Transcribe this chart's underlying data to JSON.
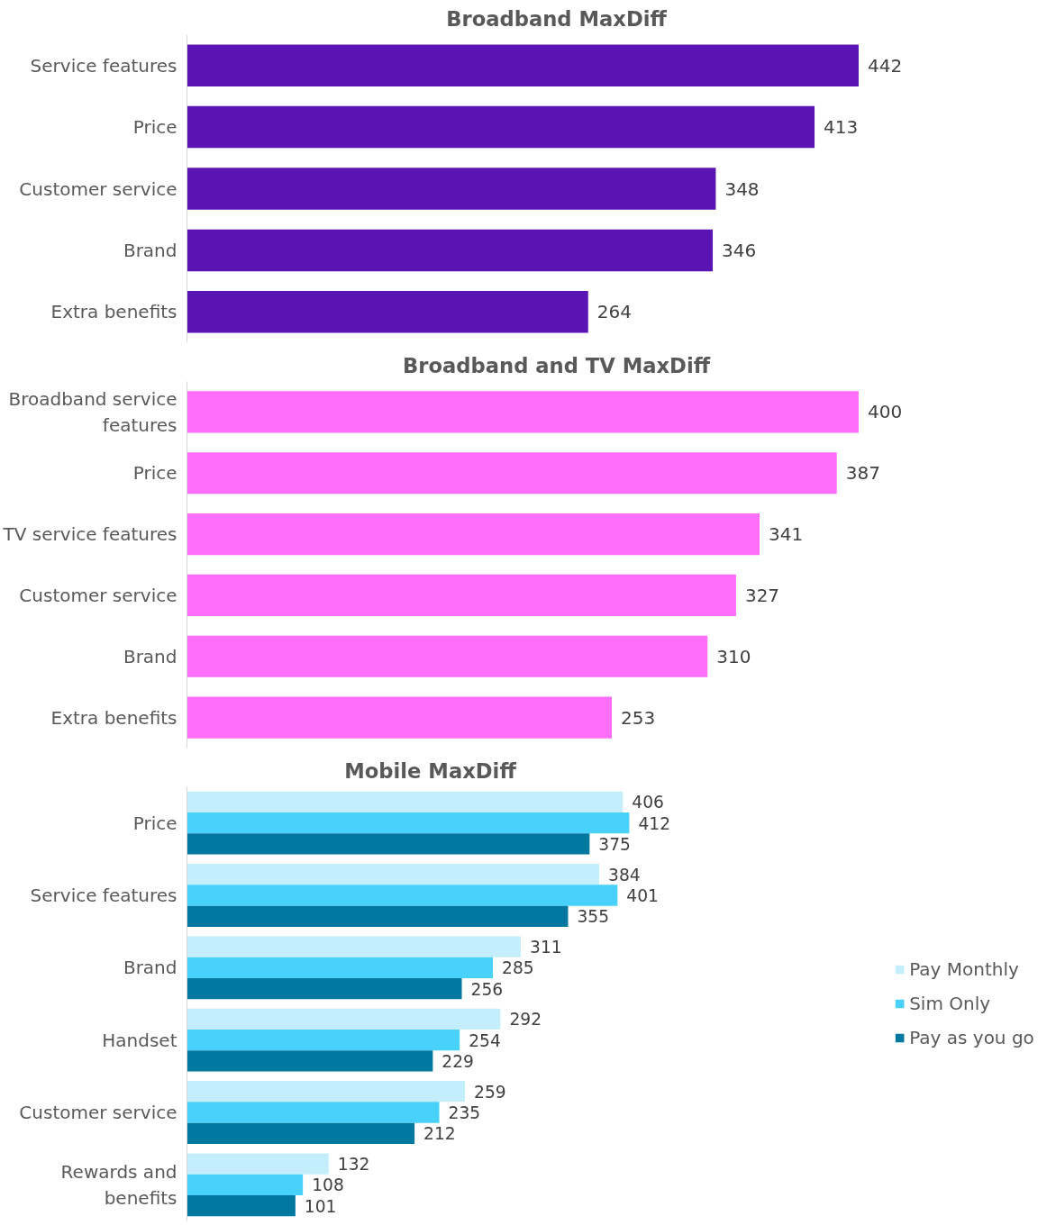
{
  "chart_data": [
    {
      "type": "bar",
      "orientation": "horizontal",
      "title": "Broadband MaxDiff",
      "categories": [
        "Service features",
        "Price",
        "Customer service",
        "Brand",
        "Extra benefits"
      ],
      "values": [
        442,
        413,
        348,
        346,
        264
      ],
      "color": "#5a14b4",
      "data_labels": true,
      "grid": false,
      "legend": false,
      "tick_labels": "y"
    },
    {
      "type": "bar",
      "orientation": "horizontal",
      "title": "Broadband and TV MaxDiff",
      "categories": [
        "Broadband service features",
        "Price",
        "TV service features",
        "Customer service",
        "Brand",
        "Extra benefits"
      ],
      "values": [
        400,
        387,
        341,
        327,
        310,
        253
      ],
      "color": "#ff6ef9",
      "data_labels": true,
      "grid": false,
      "legend": false,
      "tick_labels": "y"
    },
    {
      "type": "bar",
      "orientation": "horizontal",
      "title": "Mobile MaxDiff",
      "categories": [
        "Price",
        "Service features",
        "Brand",
        "Handset",
        "Customer service",
        "Rewards and benefits"
      ],
      "series": [
        {
          "name": "Pay Monthly",
          "color": "#c5eefc",
          "values": [
            406,
            384,
            311,
            292,
            259,
            132
          ]
        },
        {
          "name": "Sim Only",
          "color": "#48d1fa",
          "values": [
            412,
            401,
            285,
            254,
            235,
            108
          ]
        },
        {
          "name": "Pay as you go",
          "color": "#0078a0",
          "values": [
            375,
            355,
            256,
            229,
            212,
            101
          ]
        }
      ],
      "data_labels": true,
      "grid": false,
      "legend": "right",
      "tick_labels": "y"
    }
  ]
}
